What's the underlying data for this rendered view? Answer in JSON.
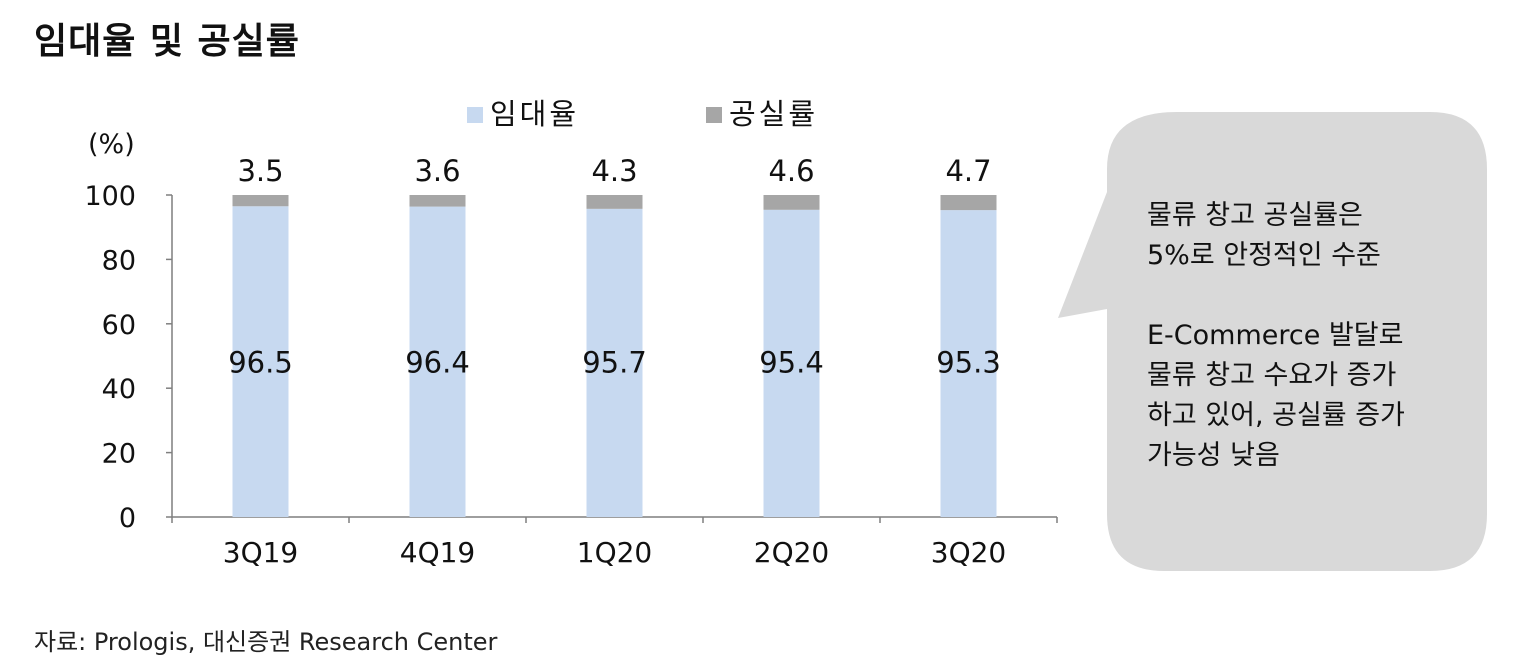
{
  "title": "임대율 및 공실률",
  "source": "자료: Prologis, 대신증권 Research Center",
  "callout": {
    "paragraph1": [
      "물류 창고 공실률은",
      "5%로 안정적인 수준"
    ],
    "paragraph2": [
      "E-Commerce 발달로",
      "물류 창고 수요가 증가",
      "하고 있어, 공실률 증가",
      "가능성 낮음"
    ]
  },
  "chart_data": {
    "type": "bar",
    "stacked": true,
    "categories": [
      "3Q19",
      "4Q19",
      "1Q20",
      "2Q20",
      "3Q20"
    ],
    "series": [
      {
        "name": "임대율",
        "values": [
          96.5,
          96.4,
          95.7,
          95.4,
          95.3
        ],
        "color": "#c7d9f0"
      },
      {
        "name": "공실률",
        "values": [
          3.5,
          3.6,
          4.3,
          4.6,
          4.7
        ],
        "color": "#a6a6a6"
      }
    ],
    "ylabel": "(%)",
    "ylim": [
      0,
      100
    ],
    "yticks": [
      0,
      20,
      40,
      60,
      80,
      100
    ],
    "grid": false,
    "legend": "top-center"
  }
}
